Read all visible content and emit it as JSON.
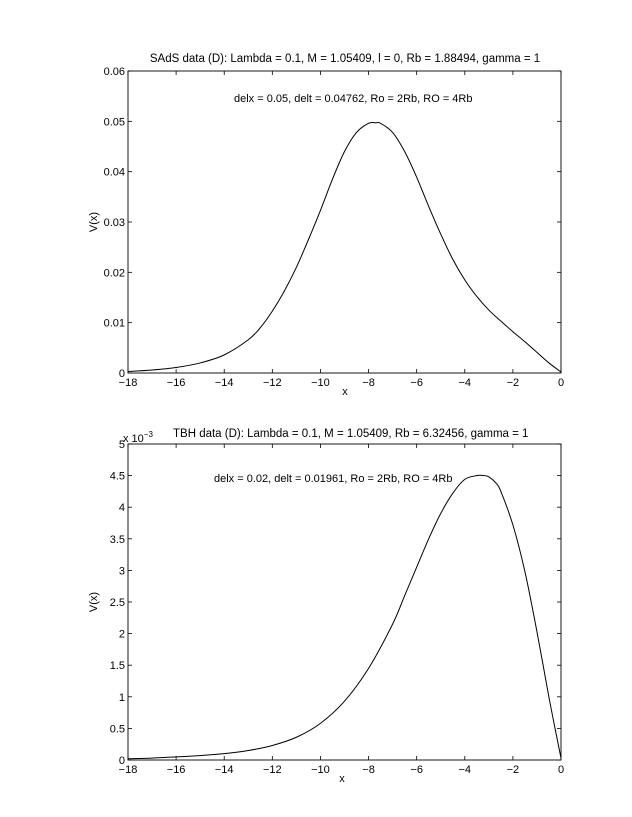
{
  "chart_data": [
    {
      "type": "line",
      "title": "SAdS data (D): Lambda = 0.1, M = 1.05409, l = 0, Rb = 1.88494, gamma = 1",
      "annotation": "delx = 0.05, delt = 0.04762, Ro = 2Rb, RO = 4Rb",
      "xlabel": "x",
      "ylabel": "V(x)",
      "xlim": [
        -18,
        0
      ],
      "ylim": [
        0,
        0.06
      ],
      "xticks": [
        -18,
        -16,
        -14,
        -12,
        -10,
        -8,
        -6,
        -4,
        -2,
        0
      ],
      "xtick_labels": [
        "−18",
        "−16",
        "−14",
        "−12",
        "−10",
        "−8",
        "−6",
        "−4",
        "−2",
        "0"
      ],
      "yticks": [
        0,
        0.01,
        0.02,
        0.03,
        0.04,
        0.05,
        0.06
      ],
      "ytick_labels": [
        "0",
        "0.01",
        "0.02",
        "0.03",
        "0.04",
        "0.05",
        "0.06"
      ],
      "grid": false,
      "series": [
        {
          "x": [
            -18,
            -17,
            -16,
            -15,
            -14,
            -13,
            -12.5,
            -12,
            -11.5,
            -11,
            -10.5,
            -10,
            -9.5,
            -9,
            -8.5,
            -8,
            -7.7,
            -7.5,
            -7,
            -6.5,
            -6,
            -5.5,
            -5,
            -4.5,
            -4,
            -3.5,
            -3,
            -2.5,
            -2,
            -1.5,
            -1,
            -0.5,
            0
          ],
          "y": [
            0.0003,
            0.0006,
            0.0011,
            0.002,
            0.0036,
            0.0066,
            0.009,
            0.0123,
            0.0163,
            0.021,
            0.0265,
            0.0323,
            0.0385,
            0.044,
            0.0478,
            0.0496,
            0.0497,
            0.0496,
            0.0478,
            0.044,
            0.0389,
            0.0331,
            0.0276,
            0.0226,
            0.0185,
            0.0152,
            0.0125,
            0.0103,
            0.0082,
            0.0062,
            0.0041,
            0.002,
            0.0002
          ]
        }
      ]
    },
    {
      "type": "line",
      "title": "TBH data (D): Lambda = 0.1, M = 1.05409, Rb = 6.32456, gamma = 1",
      "annotation": "delx = 0.02, delt = 0.01961, Ro = 2Rb, RO = 4Rb",
      "exponent_label": "x 10",
      "exponent_power": "−3",
      "xlabel": "x",
      "ylabel": "V(x)",
      "xlim": [
        -18,
        0
      ],
      "ylim": [
        0,
        5
      ],
      "xticks": [
        -18,
        -16,
        -14,
        -12,
        -10,
        -8,
        -6,
        -4,
        -2,
        0
      ],
      "xtick_labels": [
        "−18",
        "−16",
        "−14",
        "−12",
        "−10",
        "−8",
        "−6",
        "−4",
        "−2",
        "0"
      ],
      "yticks": [
        0,
        0.5,
        1,
        1.5,
        2,
        2.5,
        3,
        3.5,
        4,
        4.5,
        5
      ],
      "ytick_labels": [
        "0",
        "0.5",
        "1",
        "1.5",
        "2",
        "2.5",
        "3",
        "3.5",
        "4",
        "4.5",
        "5"
      ],
      "grid": false,
      "series": [
        {
          "x": [
            -18,
            -17,
            -16,
            -15,
            -14,
            -13,
            -12,
            -11,
            -10,
            -9,
            -8,
            -7,
            -6.5,
            -6,
            -5.5,
            -5,
            -4.5,
            -4,
            -3.5,
            -3.2,
            -3,
            -2.7,
            -2.5,
            -2,
            -1.5,
            -1,
            -0.5,
            -0.1,
            0
          ],
          "y": [
            0.02,
            0.03,
            0.05,
            0.07,
            0.1,
            0.15,
            0.23,
            0.36,
            0.58,
            0.93,
            1.45,
            2.15,
            2.6,
            3.05,
            3.5,
            3.9,
            4.22,
            4.44,
            4.5,
            4.5,
            4.48,
            4.38,
            4.25,
            3.72,
            2.98,
            2.03,
            0.99,
            0.22,
            0.03
          ]
        }
      ]
    }
  ]
}
